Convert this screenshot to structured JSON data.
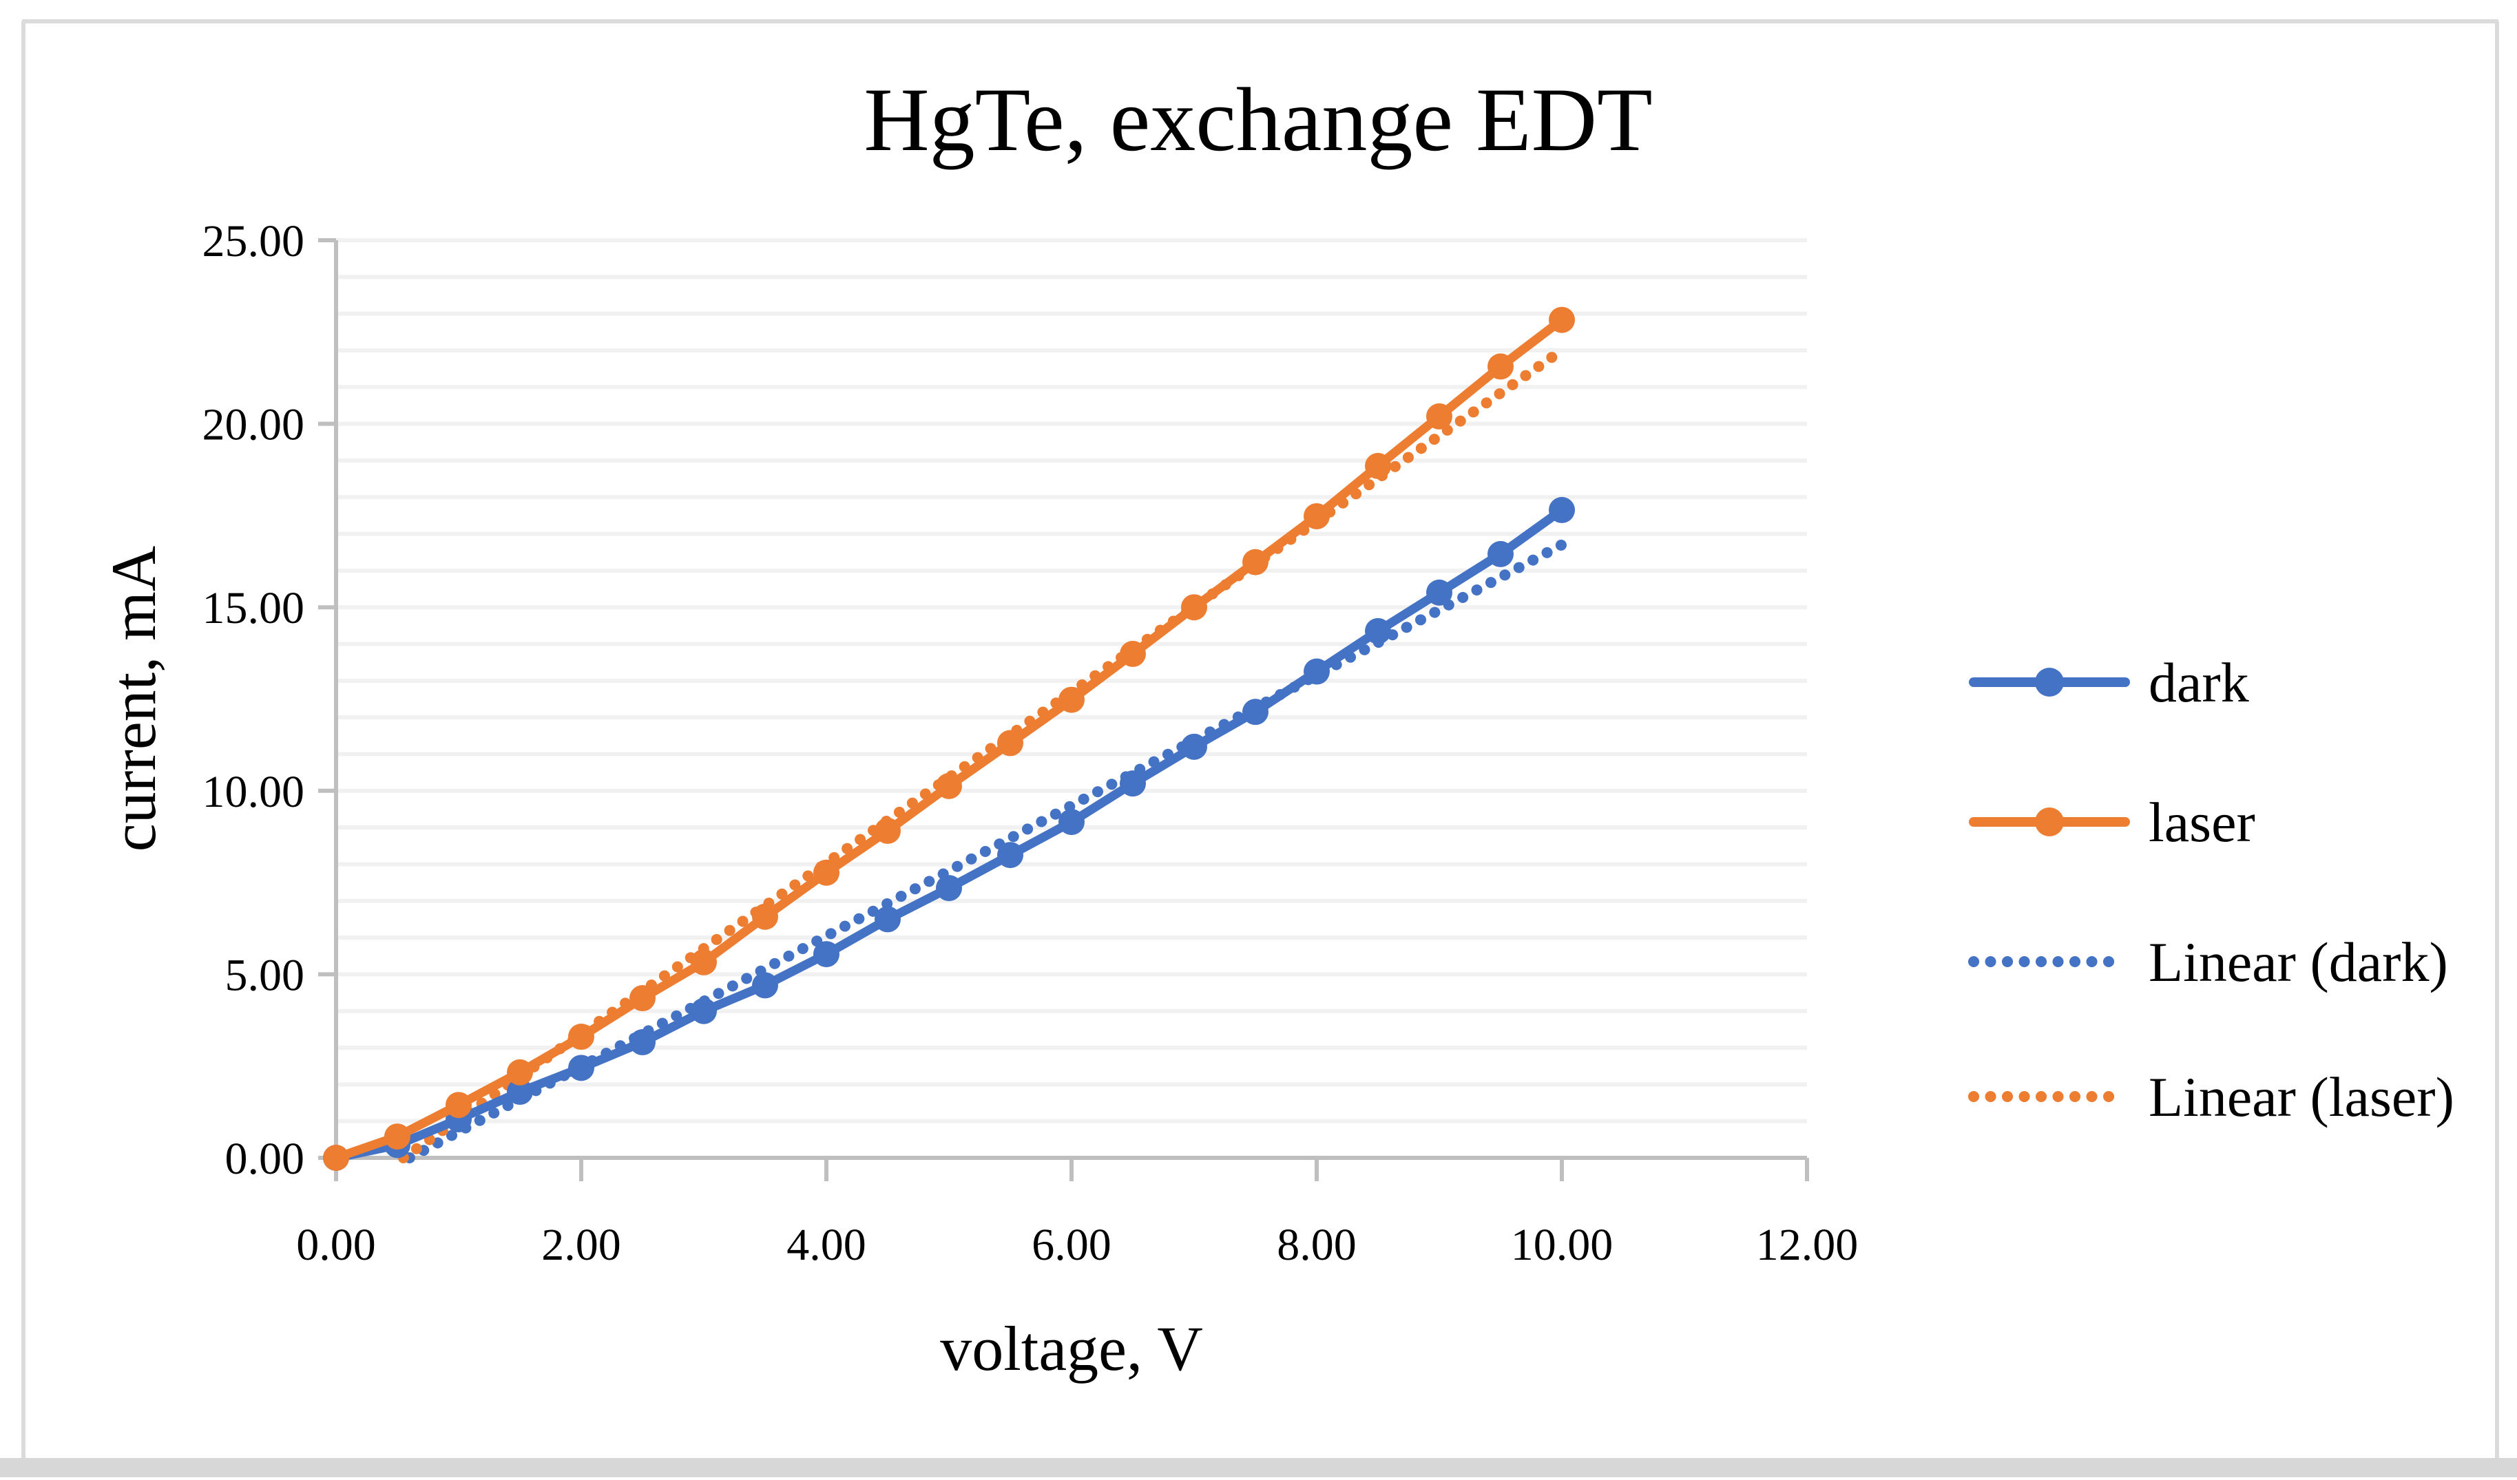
{
  "chart_data": {
    "type": "line",
    "title": "HgTe, exchange EDT",
    "xlabel": "voltage, V",
    "ylabel": "current, mA",
    "xlim": [
      0,
      12
    ],
    "ylim": [
      0,
      25
    ],
    "grid": "horizontal-minor",
    "minor_grid_step_mA": 1,
    "x_tick_values": [
      0,
      2,
      4,
      6,
      8,
      10,
      12
    ],
    "x_tick_labels": [
      "0.00",
      "2.00",
      "4.00",
      "6.00",
      "8.00",
      "10.00",
      "12.00"
    ],
    "y_tick_values": [
      0,
      5,
      10,
      15,
      20,
      25
    ],
    "y_tick_labels": [
      "0.00",
      "5.00",
      "10.00",
      "15.00",
      "20.00",
      "25.00"
    ],
    "x": [
      0,
      0.5,
      1,
      1.5,
      2,
      2.5,
      3,
      3.5,
      4,
      4.5,
      5,
      5.5,
      6,
      6.5,
      7,
      7.5,
      8,
      8.5,
      9,
      9.5,
      10
    ],
    "series": [
      {
        "name": "dark",
        "color": "#4472C4",
        "style": "solid-with-markers",
        "values": [
          0,
          0.35,
          1.05,
          1.8,
          2.45,
          3.15,
          4.0,
          4.7,
          5.55,
          6.5,
          7.35,
          8.25,
          9.15,
          10.2,
          11.2,
          12.15,
          13.25,
          14.35,
          15.4,
          16.45,
          17.65
        ]
      },
      {
        "name": "laser",
        "color": "#ED7D31",
        "style": "solid-with-markers",
        "values": [
          0,
          0.58,
          1.44,
          2.33,
          3.3,
          4.35,
          5.33,
          6.57,
          7.77,
          8.91,
          10.13,
          11.3,
          12.48,
          13.73,
          15.0,
          16.23,
          17.48,
          18.85,
          20.2,
          21.56,
          22.83
        ]
      }
    ],
    "trendlines": [
      {
        "name": "Linear (dark)",
        "color": "#4472C4",
        "style": "dotted",
        "slope": 1.777,
        "intercept": -1.066,
        "x_start_at_zero_current": 0.6,
        "x_end": 10,
        "value_at_x_end": 16.71
      },
      {
        "name": "Linear (laser)",
        "color": "#ED7D31",
        "style": "dotted",
        "slope": 2.328,
        "intercept": -1.28,
        "x_start_at_zero_current": 0.55,
        "x_end": 10,
        "value_at_x_end": 22.0
      }
    ],
    "legend": {
      "position": "right",
      "entries": [
        {
          "label": "dark",
          "color": "#4472C4",
          "marker": "solid-line-circle"
        },
        {
          "label": "laser",
          "color": "#ED7D31",
          "marker": "solid-line-circle"
        },
        {
          "label": "Linear (dark)",
          "color": "#4472C4",
          "marker": "dotted-line"
        },
        {
          "label": "Linear (laser)",
          "color": "#ED7D31",
          "marker": "dotted-line"
        }
      ]
    },
    "colors": {
      "dark_series": "#4472C4",
      "laser_series": "#ED7D31",
      "axis_line": "#BFBFBF",
      "gridline": "#F1F1F1",
      "figure_border": "#DBDBDB",
      "bottom_band": "#D7D7D7",
      "text": "#000000",
      "background": "#FFFFFF"
    }
  }
}
